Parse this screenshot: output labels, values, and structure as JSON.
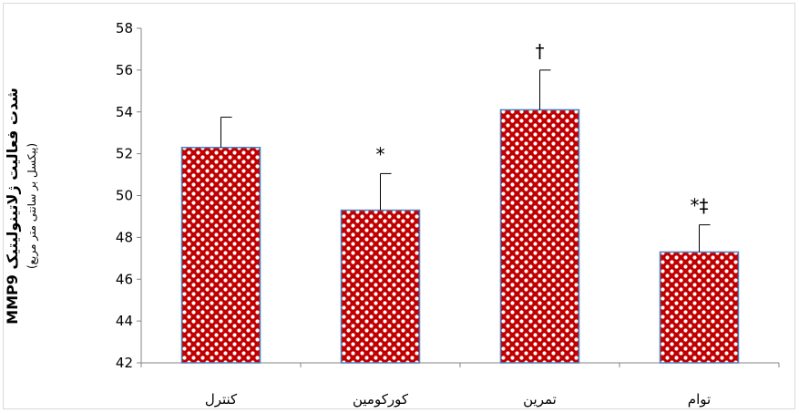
{
  "chart_data": {
    "type": "bar",
    "categories": [
      "کنترل",
      "کورکومین",
      "تمرین",
      "توام"
    ],
    "values": [
      52.3,
      49.3,
      54.1,
      47.3
    ],
    "error_plus": [
      1.45,
      1.75,
      1.9,
      1.3
    ],
    "annotations": [
      "",
      "*",
      "†",
      "*‡"
    ],
    "title": "",
    "ylabel": "MMP9 شدت فعالیت ژلاتینولیتیک",
    "ylabel_unit": "(پیکسل بر سانتی متر مربع)",
    "xlabel": "",
    "ylim": [
      42,
      58
    ],
    "yticks": [
      42,
      44,
      46,
      48,
      50,
      52,
      54,
      56,
      58
    ],
    "grid": false,
    "legend": "none",
    "bar_fill": "#c00000",
    "bar_dot": "#ffffff",
    "bar_border": "#4f81bd",
    "axis_color": "#868686"
  }
}
